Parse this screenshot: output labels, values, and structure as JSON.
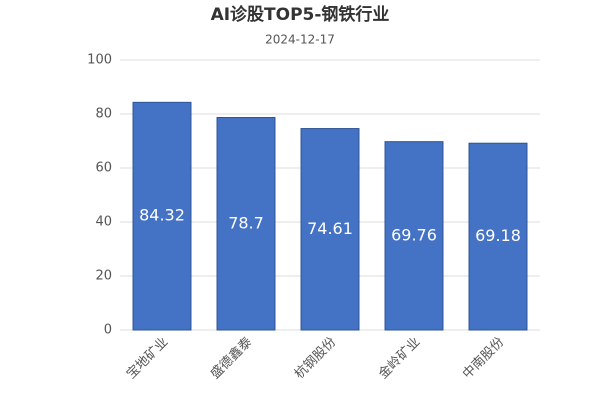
{
  "chart_data": {
    "type": "bar",
    "title": "AI诊股TOP5-钢铁行业",
    "subtitle": "2024-12-17",
    "categories": [
      "宝地矿业",
      "盛德鑫泰",
      "杭钢股份",
      "金岭矿业",
      "中南股份"
    ],
    "values": [
      84.32,
      78.7,
      74.61,
      69.76,
      69.18
    ],
    "color": "#4472c4",
    "ylim": [
      0,
      100
    ],
    "yticks": [
      0,
      20,
      40,
      60,
      80,
      100
    ],
    "grid": true
  }
}
